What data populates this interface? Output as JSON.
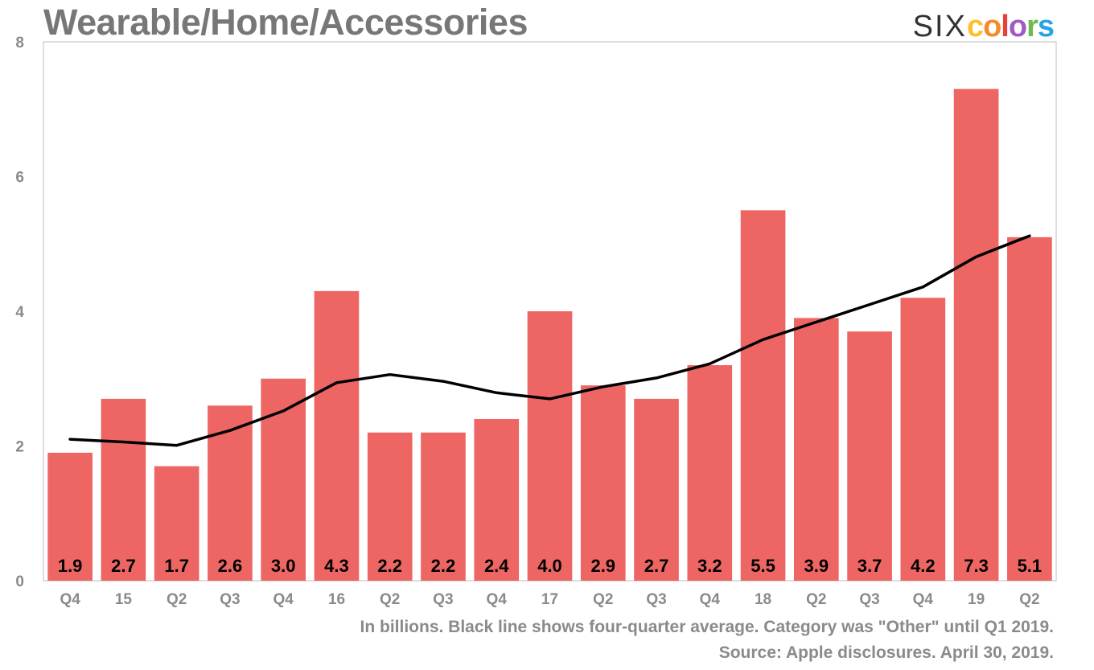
{
  "title": "Wearable/Home/Accessories",
  "brand": {
    "six": "SIX",
    "colors_letters": [
      "c",
      "o",
      "l",
      "o",
      "r",
      "s"
    ],
    "colors_palette": [
      "#fcbf2d",
      "#f58b2b",
      "#e7413b",
      "#a25cc6",
      "#6cba4c",
      "#2aa4e0"
    ]
  },
  "notes": {
    "line1": "In billions. Black line shows four-quarter average. Category was \"Other\" until Q1 2019.",
    "line2": "Source: Apple disclosures. April 30, 2019."
  },
  "chart_data": {
    "type": "bar",
    "title": "Wearable/Home/Accessories",
    "xlabel": "",
    "ylabel": "In billions",
    "ylim": [
      0,
      8
    ],
    "yticks": [
      0,
      2,
      4,
      6,
      8
    ],
    "categories": [
      "Q4",
      "15",
      "Q2",
      "Q3",
      "Q4",
      "16",
      "Q2",
      "Q3",
      "Q4",
      "17",
      "Q2",
      "Q3",
      "Q4",
      "18",
      "Q2",
      "Q3",
      "Q4",
      "19",
      "Q2"
    ],
    "values": [
      1.9,
      2.7,
      1.7,
      2.6,
      3.0,
      4.3,
      2.2,
      2.2,
      2.4,
      4.0,
      2.9,
      2.7,
      3.2,
      5.5,
      3.9,
      3.7,
      4.2,
      7.3,
      5.1
    ],
    "value_labels": [
      "1.9",
      "2.7",
      "1.7",
      "2.6",
      "3.0",
      "4.3",
      "2.2",
      "2.2",
      "2.4",
      "4.0",
      "2.9",
      "2.7",
      "3.2",
      "5.5",
      "3.9",
      "3.7",
      "4.2",
      "7.3",
      "5.1"
    ],
    "bar_color": "#ed6663",
    "line_series": {
      "name": "Four-quarter average",
      "color": "#000000",
      "values": [
        2.1,
        2.06,
        2.01,
        2.23,
        2.52,
        2.94,
        3.06,
        2.96,
        2.79,
        2.7,
        2.88,
        3.01,
        3.22,
        3.58,
        3.84,
        4.1,
        4.36,
        4.81,
        5.12
      ]
    },
    "grid": false
  }
}
